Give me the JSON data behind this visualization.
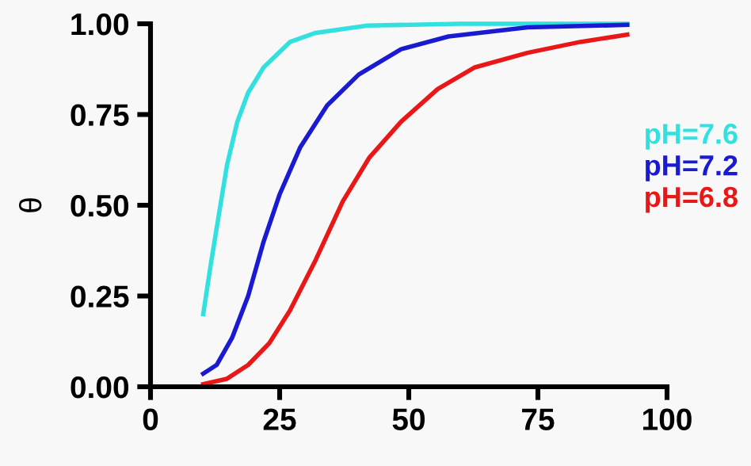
{
  "chart_data": {
    "type": "line",
    "ylabel": "θ",
    "xlim": [
      0,
      100
    ],
    "ylim": [
      0,
      1
    ],
    "xticks": [
      0,
      25,
      50,
      75,
      100
    ],
    "yticks": [
      {
        "value": 0,
        "label": "0.00"
      },
      {
        "value": 0.25,
        "label": "0.25"
      },
      {
        "value": 0.5,
        "label": "0.50"
      },
      {
        "value": 0.75,
        "label": "0.75"
      },
      {
        "value": 1,
        "label": "1.00"
      }
    ],
    "grid": false,
    "legend": "right",
    "marker": "none",
    "line_style": "solid",
    "series": [
      {
        "name": "pH=7.6",
        "color": "#33e0e0",
        "x": [
          10.2,
          11.7,
          13.3,
          14.8,
          16.8,
          18.9,
          21.9,
          27,
          32,
          42,
          60,
          92.3
        ],
        "values": [
          0.2,
          0.34,
          0.48,
          0.61,
          0.73,
          0.81,
          0.88,
          0.95,
          0.975,
          0.995,
          1.0,
          1.0
        ]
      },
      {
        "name": "pH=7.2",
        "color": "#1a1ad0",
        "x": [
          10.2,
          12.8,
          15.8,
          18.9,
          21.9,
          25,
          29,
          34.2,
          40.3,
          48.5,
          57.7,
          73,
          92.3
        ],
        "values": [
          0.036,
          0.06,
          0.135,
          0.25,
          0.4,
          0.53,
          0.66,
          0.775,
          0.86,
          0.93,
          0.965,
          0.99,
          0.997
        ]
      },
      {
        "name": "pH=6.8",
        "color": "#e81818",
        "x": [
          10.2,
          14.8,
          18.9,
          23,
          27,
          32,
          37.2,
          42.3,
          48.5,
          55.6,
          62.8,
          73,
          83.2,
          92.3
        ],
        "values": [
          0.007,
          0.022,
          0.06,
          0.12,
          0.21,
          0.35,
          0.51,
          0.63,
          0.73,
          0.82,
          0.88,
          0.92,
          0.95,
          0.97
        ]
      }
    ]
  }
}
